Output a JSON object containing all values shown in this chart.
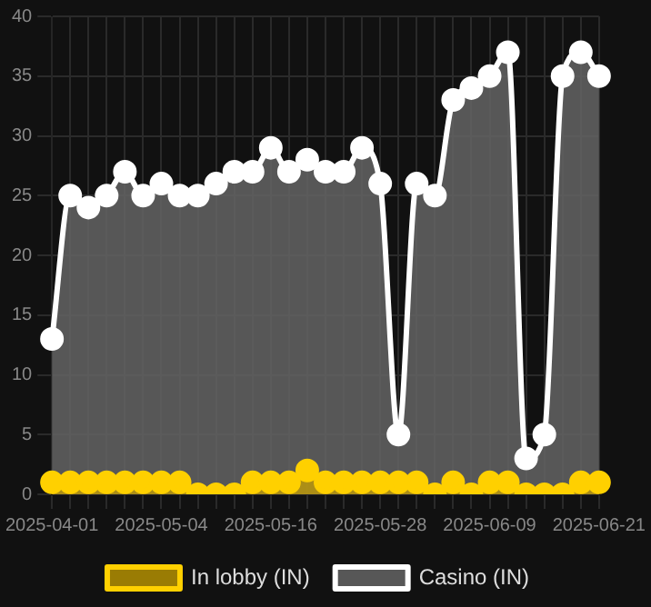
{
  "chart_data": {
    "type": "area",
    "categories": [
      "2025-04-01",
      null,
      null,
      null,
      null,
      null,
      "2025-05-04",
      null,
      null,
      null,
      null,
      null,
      "2025-05-16",
      null,
      null,
      null,
      null,
      null,
      "2025-05-28",
      null,
      null,
      null,
      null,
      null,
      "2025-06-09",
      null,
      null,
      null,
      null,
      null,
      "2025-06-21"
    ],
    "series": [
      {
        "name": "In lobby (IN)",
        "color": "#ffd000",
        "values": [
          1,
          1,
          1,
          1,
          1,
          1,
          1,
          1,
          0,
          0,
          0,
          1,
          1,
          1,
          2,
          1,
          1,
          1,
          1,
          1,
          1,
          0,
          1,
          0,
          1,
          1,
          0,
          0,
          0,
          1,
          1
        ]
      },
      {
        "name": "Casino (IN)",
        "color": "#ffffff",
        "values": [
          13,
          25,
          24,
          25,
          27,
          25,
          26,
          25,
          25,
          26,
          27,
          27,
          29,
          27,
          28,
          27,
          27,
          29,
          26,
          5,
          26,
          25,
          33,
          34,
          35,
          37,
          3,
          5,
          35,
          37,
          35
        ]
      }
    ],
    "ylim": [
      0,
      40
    ],
    "yticks": [
      0,
      5,
      10,
      15,
      20,
      25,
      30,
      35,
      40
    ],
    "grid": true,
    "legend": "bottom",
    "marker": "circle"
  }
}
